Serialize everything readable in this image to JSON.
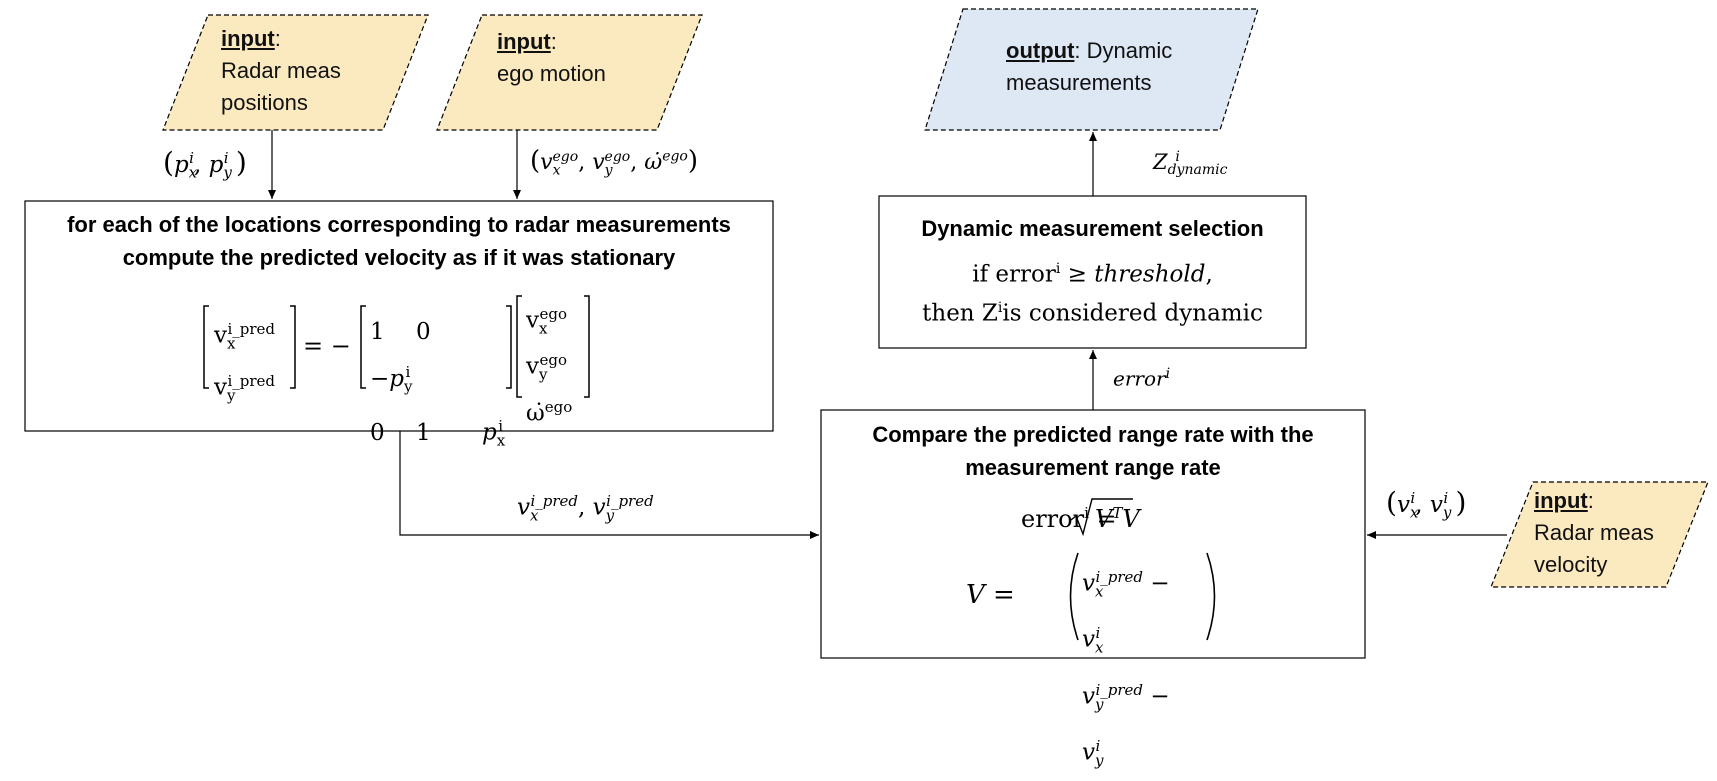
{
  "inputs": {
    "radar_positions": {
      "prefix": "input",
      "text_line1": "Radar meas",
      "text_line2": "positions"
    },
    "ego_motion": {
      "prefix": "input",
      "text_line1": "ego motion"
    },
    "radar_velocity": {
      "prefix": "input",
      "text_line1": "Radar meas",
      "text_line2": "velocity"
    }
  },
  "output": {
    "prefix": "output",
    "text_line1": "Dynamic",
    "text_line2": "measurements"
  },
  "boxes": {
    "predicted_velocity": {
      "title_line1": "for each of the locations corresponding to radar measurements",
      "title_line2": "compute the predicted velocity as if it was stationary"
    },
    "compare": {
      "title_line1": "Compare the predicted range rate with the",
      "title_line2": "measurement range rate",
      "error_formula_lhs": "error",
      "error_formula_sup": "i"
    },
    "dynamic_selection": {
      "title": "Dynamic measurement selection",
      "rule_line1_prefix": "if error",
      "rule_line1_mid": " ≥ ",
      "rule_line1_threshold": "threshold",
      "rule_line2_prefix": "then Z",
      "rule_line2_suffix": "is considered dynamic"
    }
  },
  "edge_labels": {
    "error_i": "error",
    "z_dynamic_sub": "dynamic"
  },
  "colors": {
    "input_fill": "#fbe9c0",
    "output_fill": "#dde8f4",
    "stroke": "#000000"
  }
}
